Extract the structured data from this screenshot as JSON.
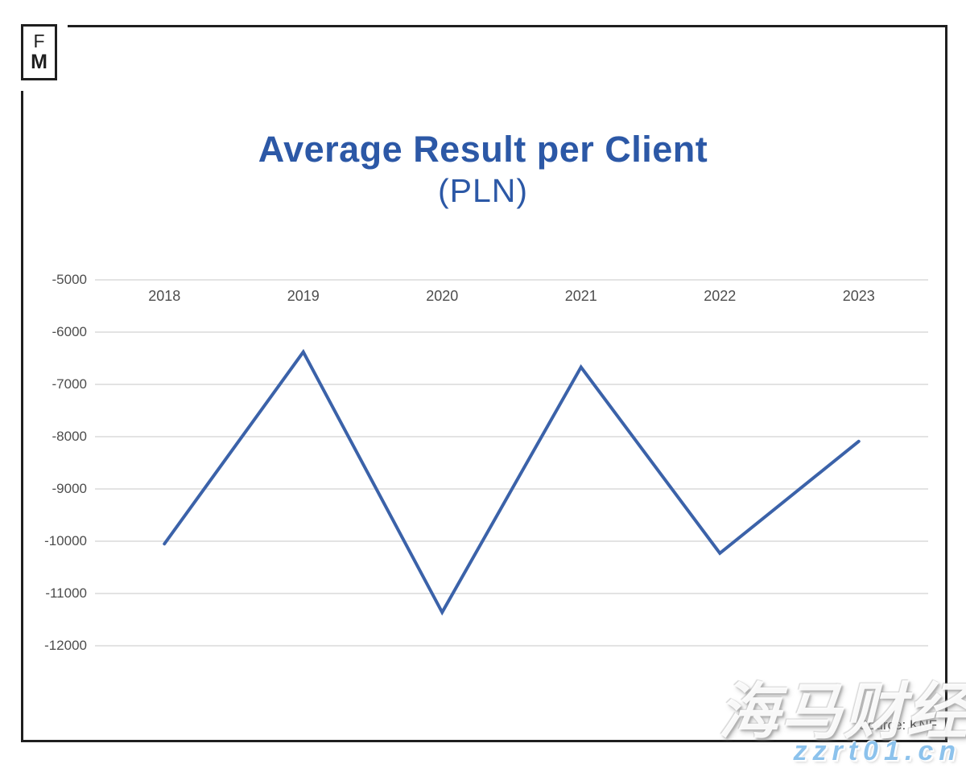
{
  "logo": {
    "top": "F",
    "bottom": "M"
  },
  "title": {
    "line1": "Average Result per Client",
    "line2": "(PLN)"
  },
  "source": {
    "label": "Source: KNF"
  },
  "watermark": {
    "cjk": "海马财经",
    "url": "zzrt01.cn"
  },
  "colors": {
    "title": "#2c58a6",
    "line": "#3b62a9",
    "grid": "#e3e3e3",
    "tick": "#4d4d4d",
    "frame": "#1f1f1f",
    "watermark_url": "#8cc2ec"
  },
  "chart_data": {
    "type": "line",
    "title": "Average Result per Client (PLN)",
    "categories": [
      "2018",
      "2019",
      "2020",
      "2021",
      "2022",
      "2023"
    ],
    "series": [
      {
        "name": "Average result per client (PLN)",
        "values": [
          -10050,
          -6380,
          -11360,
          -6670,
          -10230,
          -8090
        ]
      }
    ],
    "y_ticks": [
      -5000,
      -6000,
      -7000,
      -8000,
      -9000,
      -10000,
      -11000,
      -12000
    ],
    "ylim": [
      -12000,
      -5000
    ],
    "xlabel": "",
    "ylabel": "",
    "grid": "horizontal",
    "legend": "none",
    "markers": "none"
  }
}
